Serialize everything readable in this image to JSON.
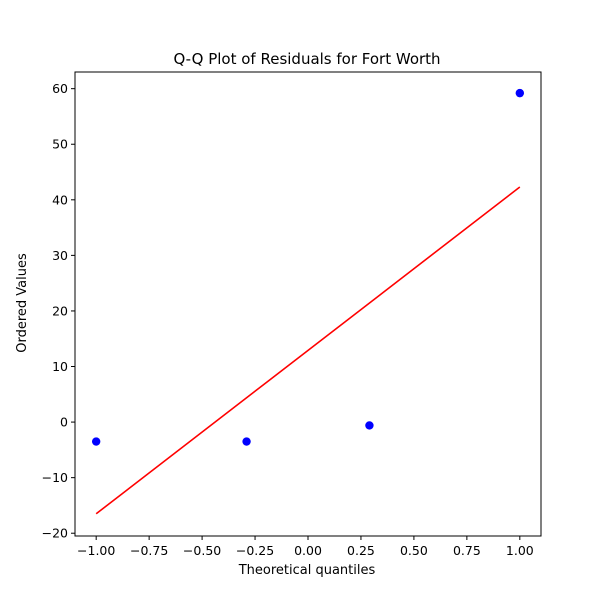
{
  "chart_data": {
    "type": "scatter",
    "title": "Q-Q Plot of Residuals for Fort Worth",
    "xlabel": "Theoretical quantiles",
    "ylabel": "Ordered Values",
    "xlim": [
      -1.1,
      1.1
    ],
    "ylim": [
      -20.5,
      63
    ],
    "xticks": [
      -1.0,
      -0.75,
      -0.5,
      -0.25,
      0.0,
      0.25,
      0.5,
      0.75,
      1.0
    ],
    "xtick_labels": [
      "−1.00",
      "−0.75",
      "−0.50",
      "−0.25",
      "0.00",
      "0.25",
      "0.50",
      "0.75",
      "1.00"
    ],
    "yticks": [
      -20,
      -10,
      0,
      10,
      20,
      30,
      40,
      50,
      60
    ],
    "ytick_labels": [
      "−20",
      "−10",
      "0",
      "10",
      "20",
      "30",
      "40",
      "50",
      "60"
    ],
    "grid": false,
    "series": [
      {
        "kind": "points",
        "color": "#0000ff",
        "points": [
          {
            "x": -1.0,
            "y": -3.5
          },
          {
            "x": -0.29,
            "y": -3.5
          },
          {
            "x": 0.29,
            "y": -0.6
          },
          {
            "x": 1.0,
            "y": 59.2
          }
        ]
      },
      {
        "kind": "fit-line",
        "color": "#ff0000",
        "points": [
          {
            "x": -1.0,
            "y": -16.5
          },
          {
            "x": 1.0,
            "y": 42.3
          }
        ]
      }
    ]
  }
}
